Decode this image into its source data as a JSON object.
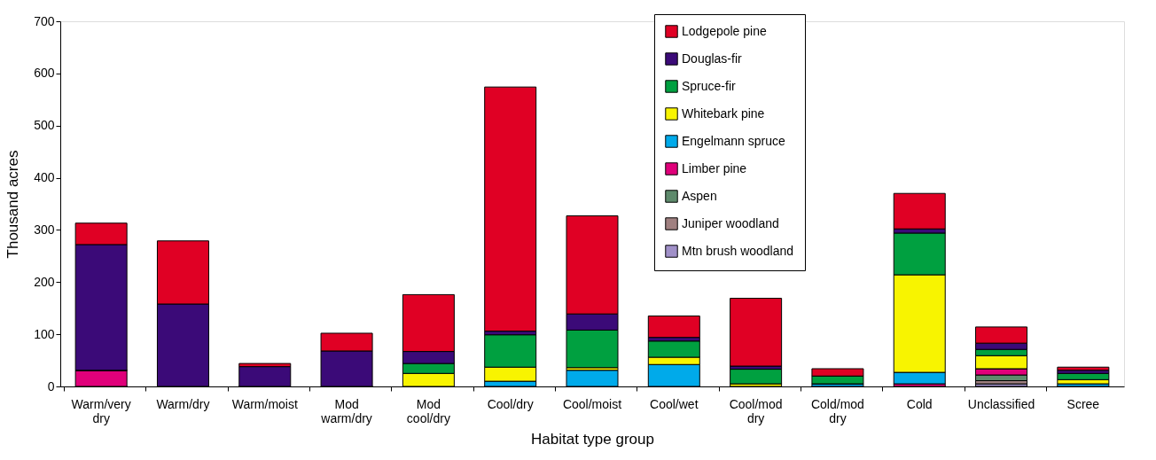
{
  "chart_data": {
    "type": "bar",
    "stacked": true,
    "xlabel": "Habitat type group",
    "ylabel": "Thousand acres",
    "categories": [
      "Warm/very dry",
      "Warm/dry",
      "Warm/moist",
      "Mod warm/dry",
      "Mod cool/dry",
      "Cool/dry",
      "Cool/moist",
      "Cool/wet",
      "Cool/mod dry",
      "Cold/mod dry",
      "Cold",
      "Unclassified",
      "Scree"
    ],
    "series": [
      {
        "name": "Mtn brush woodland",
        "color": "#a090c8",
        "values": [
          0,
          0,
          0,
          0,
          0,
          0,
          0,
          0,
          0,
          0,
          0,
          5,
          0
        ]
      },
      {
        "name": "Juniper woodland",
        "color": "#a08080",
        "values": [
          0,
          0,
          0,
          0,
          0,
          0,
          0,
          0,
          0,
          0,
          0,
          6,
          0
        ]
      },
      {
        "name": "Aspen",
        "color": "#5e8a6c",
        "values": [
          0,
          0,
          0,
          0,
          0,
          0,
          0,
          0,
          0,
          0,
          0,
          11,
          0
        ]
      },
      {
        "name": "Limber pine",
        "color": "#e0007a",
        "values": [
          31,
          0,
          0,
          0,
          0,
          0,
          0,
          0,
          0,
          0,
          5,
          12,
          0
        ]
      },
      {
        "name": "Engelmann spruce",
        "color": "#00aaea",
        "values": [
          0,
          0,
          0,
          0,
          0,
          10,
          31,
          42,
          0,
          5,
          22,
          0,
          5
        ]
      },
      {
        "name": "Whitebark pine",
        "color": "#f8f400",
        "values": [
          0,
          0,
          0,
          0,
          25,
          27,
          5,
          14,
          5,
          0,
          187,
          25,
          8
        ]
      },
      {
        "name": "Spruce-fir",
        "color": "#00a040",
        "values": [
          0,
          0,
          0,
          0,
          19,
          62,
          72,
          31,
          28,
          15,
          80,
          12,
          12
        ]
      },
      {
        "name": "Douglas-fir",
        "color": "#3b0a78",
        "values": [
          241,
          158,
          38,
          68,
          23,
          7,
          31,
          7,
          6,
          0,
          8,
          12,
          6
        ]
      },
      {
        "name": "Lodgepole pine",
        "color": "#e00024",
        "values": [
          41,
          121,
          6,
          34,
          109,
          468,
          188,
          41,
          130,
          14,
          68,
          31,
          6
        ]
      }
    ],
    "ylim": [
      0,
      700
    ],
    "yticks": [
      0,
      100,
      200,
      300,
      400,
      500,
      600,
      700
    ],
    "grid": false,
    "legend": "top right"
  }
}
